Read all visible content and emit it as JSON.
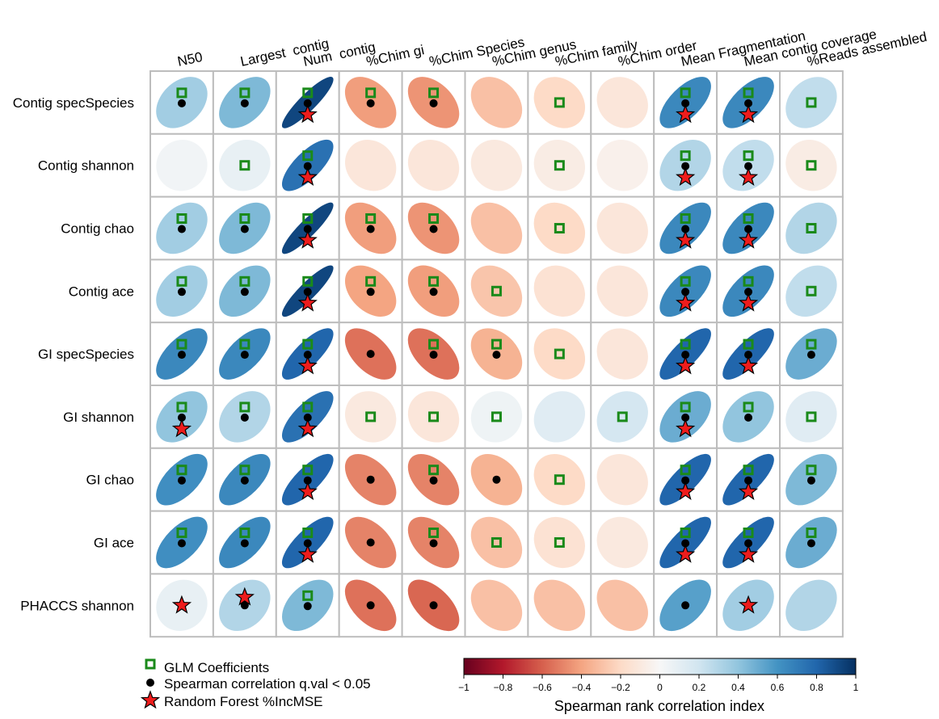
{
  "chart_data": {
    "type": "heatmap",
    "subtype": "ellipse correlation matrix",
    "columns": [
      "N50",
      "Largest  contig",
      "Num  contig",
      "%Chim gi",
      "%Chim Species",
      "%Chim genus",
      "%Chim family",
      "%Chim order",
      "Mean Fragmentation",
      "Mean contig coverage",
      "%Reads assembled"
    ],
    "rows": [
      "Contig specSpecies",
      "Contig shannon",
      "Contig chao",
      "Contig ace",
      "GI specSpecies",
      "GI shannon",
      "GI chao",
      "GI ace",
      "PHACCS shannon"
    ],
    "values": [
      [
        0.35,
        0.45,
        0.92,
        -0.42,
        -0.45,
        -0.3,
        -0.2,
        -0.12,
        0.65,
        0.65,
        0.25
      ],
      [
        0.03,
        0.08,
        0.75,
        -0.12,
        -0.12,
        -0.1,
        -0.08,
        -0.05,
        0.3,
        0.25,
        -0.08
      ],
      [
        0.35,
        0.45,
        0.92,
        -0.42,
        -0.45,
        -0.3,
        -0.2,
        -0.12,
        0.65,
        0.65,
        0.3
      ],
      [
        0.35,
        0.45,
        0.92,
        -0.4,
        -0.42,
        -0.28,
        -0.15,
        -0.12,
        0.65,
        0.65,
        0.25
      ],
      [
        0.65,
        0.65,
        0.8,
        -0.55,
        -0.55,
        -0.35,
        -0.2,
        -0.12,
        0.8,
        0.8,
        0.5
      ],
      [
        0.4,
        0.3,
        0.75,
        -0.1,
        -0.12,
        0.05,
        0.12,
        0.18,
        0.5,
        0.4,
        0.12
      ],
      [
        0.62,
        0.65,
        0.8,
        -0.5,
        -0.5,
        -0.35,
        -0.2,
        -0.12,
        0.8,
        0.8,
        0.45
      ],
      [
        0.62,
        0.65,
        0.8,
        -0.5,
        -0.5,
        -0.3,
        -0.15,
        -0.1,
        0.8,
        0.8,
        0.5
      ],
      [
        0.08,
        0.3,
        0.45,
        -0.55,
        -0.58,
        -0.3,
        -0.3,
        -0.3,
        0.55,
        0.35,
        0.3
      ]
    ],
    "glm_coefficients": [
      [
        1,
        1,
        1,
        1,
        1,
        0,
        1,
        0,
        1,
        1,
        1
      ],
      [
        0,
        1,
        1,
        0,
        0,
        0,
        1,
        0,
        1,
        1,
        1
      ],
      [
        1,
        1,
        1,
        1,
        1,
        0,
        1,
        0,
        1,
        1,
        1
      ],
      [
        1,
        1,
        1,
        1,
        1,
        1,
        0,
        0,
        1,
        1,
        1
      ],
      [
        1,
        1,
        1,
        0,
        1,
        1,
        1,
        0,
        1,
        1,
        1
      ],
      [
        1,
        1,
        1,
        1,
        1,
        1,
        0,
        1,
        1,
        1,
        1
      ],
      [
        1,
        1,
        1,
        0,
        1,
        0,
        1,
        0,
        1,
        1,
        1
      ],
      [
        1,
        1,
        1,
        0,
        1,
        1,
        1,
        0,
        1,
        1,
        1
      ],
      [
        0,
        0,
        1,
        0,
        0,
        0,
        0,
        0,
        0,
        0,
        0
      ]
    ],
    "spearman_significant": [
      [
        1,
        1,
        1,
        1,
        1,
        0,
        0,
        0,
        1,
        1,
        0
      ],
      [
        0,
        0,
        1,
        0,
        0,
        0,
        0,
        0,
        1,
        1,
        0
      ],
      [
        1,
        1,
        1,
        1,
        1,
        0,
        0,
        0,
        1,
        1,
        0
      ],
      [
        1,
        1,
        1,
        1,
        1,
        0,
        0,
        0,
        1,
        1,
        0
      ],
      [
        1,
        1,
        1,
        1,
        1,
        1,
        0,
        0,
        1,
        1,
        1
      ],
      [
        1,
        1,
        1,
        0,
        0,
        0,
        0,
        0,
        1,
        1,
        0
      ],
      [
        1,
        1,
        1,
        1,
        1,
        1,
        0,
        0,
        1,
        1,
        1
      ],
      [
        1,
        1,
        1,
        1,
        1,
        0,
        0,
        0,
        1,
        1,
        1
      ],
      [
        0,
        1,
        1,
        1,
        1,
        0,
        0,
        0,
        1,
        0,
        0
      ]
    ],
    "random_forest": [
      [
        0,
        0,
        1,
        0,
        0,
        0,
        0,
        0,
        1,
        1,
        0
      ],
      [
        0,
        0,
        1,
        0,
        0,
        0,
        0,
        0,
        1,
        1,
        0
      ],
      [
        0,
        0,
        1,
        0,
        0,
        0,
        0,
        0,
        1,
        1,
        0
      ],
      [
        0,
        0,
        1,
        0,
        0,
        0,
        0,
        0,
        1,
        1,
        0
      ],
      [
        0,
        0,
        1,
        0,
        0,
        0,
        0,
        0,
        1,
        1,
        0
      ],
      [
        1,
        0,
        1,
        0,
        0,
        0,
        0,
        0,
        1,
        0,
        0
      ],
      [
        0,
        0,
        1,
        0,
        0,
        0,
        0,
        0,
        1,
        1,
        0
      ],
      [
        0,
        0,
        1,
        0,
        0,
        0,
        0,
        0,
        1,
        1,
        0
      ],
      [
        1,
        1,
        0,
        0,
        0,
        0,
        0,
        0,
        0,
        1,
        0
      ]
    ],
    "legend": {
      "glm": "GLM Coefficients",
      "spearman": "Spearman correlation q.val < 0.05",
      "rf": "Random Forest %IncMSE"
    },
    "colorbar": {
      "label": "Spearman rank correlation index",
      "range": [
        -1,
        1
      ],
      "ticks": [
        "−1",
        "−0.8",
        "−0.6",
        "−0.4",
        "−0.2",
        "0",
        "0.2",
        "0.4",
        "0.6",
        "0.8",
        "1"
      ],
      "tick_values": [
        -1,
        -0.8,
        -0.6,
        -0.4,
        -0.2,
        0,
        0.2,
        0.4,
        0.6,
        0.8,
        1
      ]
    },
    "colors": {
      "glm_marker": "#1a8a1a",
      "spearman_marker": "#000000",
      "rf_marker": "#ee1c1c",
      "grid": "#bdbdbd"
    }
  }
}
